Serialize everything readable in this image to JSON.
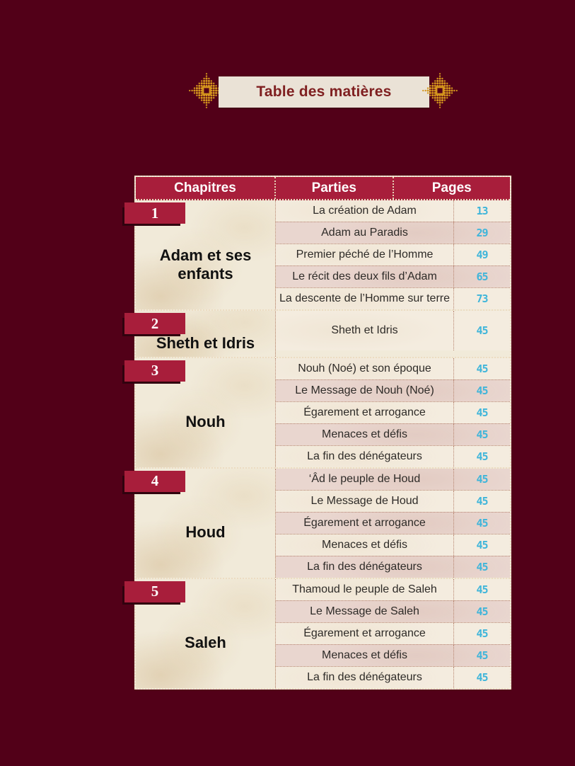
{
  "colors": {
    "page_background": "#520018",
    "accent_crimson": "#a81e3b",
    "banner_background": "#eae2d6",
    "banner_text": "#7f1f20",
    "ornament_gold": "#d4951d",
    "page_number_cyan": "#3eb5da",
    "row_cream": "#f4ecdf",
    "row_rose": "#e9d6cf"
  },
  "banner": {
    "title": "Table des matières"
  },
  "table": {
    "headers": {
      "chapter": "Chapitres",
      "parts": "Parties",
      "pages": "Pages"
    },
    "chapters": [
      {
        "number": "1",
        "title": "Adam et ses enfants",
        "parts": [
          {
            "label": "La création de Adam",
            "page": "13",
            "shaded": false
          },
          {
            "label": "Adam au Paradis",
            "page": "29",
            "shaded": true
          },
          {
            "label": "Premier péché de l’Homme",
            "page": "49",
            "shaded": false
          },
          {
            "label": "Le récit des deux fils d’Adam",
            "page": "65",
            "shaded": true
          },
          {
            "label": "La descente de l’Homme sur terre",
            "page": "73",
            "shaded": false
          }
        ]
      },
      {
        "number": "2",
        "title": "Sheth et Idris",
        "parts": [
          {
            "label": "Sheth et Idris",
            "page": "45",
            "shaded": false,
            "tall": true
          }
        ]
      },
      {
        "number": "3",
        "title": "Nouh",
        "parts": [
          {
            "label": "Nouh (Noé) et son époque",
            "page": "45",
            "shaded": false
          },
          {
            "label": "Le Message de Nouh (Noé)",
            "page": "45",
            "shaded": true
          },
          {
            "label": "Égarement et arrogance",
            "page": "45",
            "shaded": false
          },
          {
            "label": "Menaces et défis",
            "page": "45",
            "shaded": true
          },
          {
            "label": "La fin des dénégateurs",
            "page": "45",
            "shaded": false
          }
        ]
      },
      {
        "number": "4",
        "title": "Houd",
        "parts": [
          {
            "label": "‘Âd le peuple de Houd",
            "page": "45",
            "shaded": true
          },
          {
            "label": "Le Message de Houd",
            "page": "45",
            "shaded": false
          },
          {
            "label": "Égarement et arrogance",
            "page": "45",
            "shaded": true
          },
          {
            "label": "Menaces et défis",
            "page": "45",
            "shaded": false
          },
          {
            "label": "La fin des dénégateurs",
            "page": "45",
            "shaded": true
          }
        ]
      },
      {
        "number": "5",
        "title": "Saleh",
        "parts": [
          {
            "label": "Thamoud le peuple de Saleh",
            "page": "45",
            "shaded": false
          },
          {
            "label": "Le Message de Saleh",
            "page": "45",
            "shaded": true
          },
          {
            "label": "Égarement et arrogance",
            "page": "45",
            "shaded": false
          },
          {
            "label": "Menaces et défis",
            "page": "45",
            "shaded": true
          },
          {
            "label": "La fin des dénégateurs",
            "page": "45",
            "shaded": false
          }
        ]
      }
    ]
  }
}
